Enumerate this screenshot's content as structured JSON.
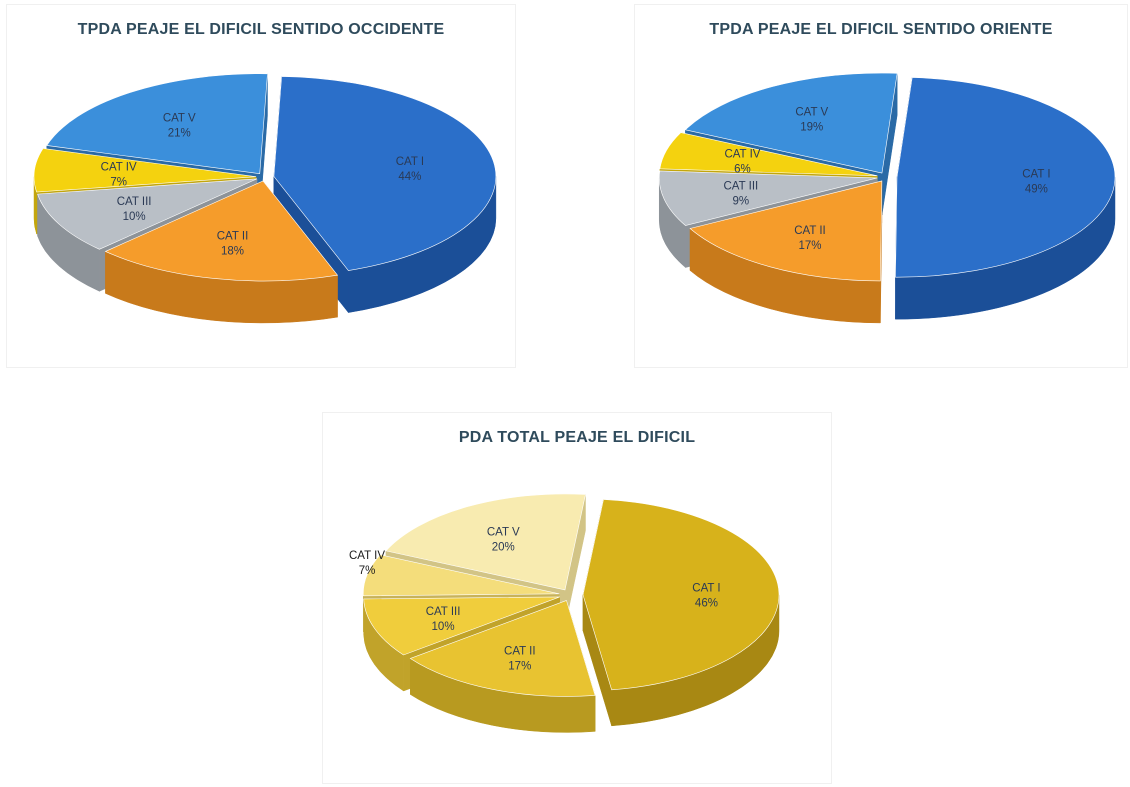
{
  "chart_data": [
    {
      "type": "pie",
      "title": "TPDA PEAJE EL DIFICIL SENTIDO OCCIDENTE",
      "three_d": true,
      "slices": [
        {
          "label": "CAT I",
          "value": 44,
          "value_label": "44%",
          "color": "#2b6fc9",
          "side": "#1b4f98",
          "explode": 1
        },
        {
          "label": "CAT II",
          "value": 18,
          "value_label": "18%",
          "color": "#f59c2b",
          "side": "#c87a1b",
          "explode": 1
        },
        {
          "label": "CAT III",
          "value": 10,
          "value_label": "10%",
          "color": "#b9bfc6",
          "side": "#8d9399",
          "explode": 1
        },
        {
          "label": "CAT IV",
          "value": 7,
          "value_label": "7%",
          "color": "#f4d20f",
          "side": "#c3a60c",
          "explode": 1
        },
        {
          "label": "CAT V",
          "value": 21,
          "value_label": "21%",
          "color": "#3b8fdb",
          "side": "#2a6aa6",
          "explode": 1
        }
      ]
    },
    {
      "type": "pie",
      "title": "TPDA PEAJE EL DIFICIL SENTIDO ORIENTE",
      "three_d": true,
      "slices": [
        {
          "label": "CAT I",
          "value": 49,
          "value_label": "49%",
          "color": "#2b6fc9",
          "side": "#1b4f98",
          "explode": 1
        },
        {
          "label": "CAT II",
          "value": 17,
          "value_label": "17%",
          "color": "#f59c2b",
          "side": "#c87a1b",
          "explode": 1
        },
        {
          "label": "CAT III",
          "value": 9,
          "value_label": "9%",
          "color": "#b9bfc6",
          "side": "#8d9399",
          "explode": 1
        },
        {
          "label": "CAT IV",
          "value": 6,
          "value_label": "6%",
          "color": "#f4d20f",
          "side": "#c3a60c",
          "explode": 1
        },
        {
          "label": "CAT V",
          "value": 19,
          "value_label": "19%",
          "color": "#3b8fdb",
          "side": "#2a6aa6",
          "explode": 1
        }
      ]
    },
    {
      "type": "pie",
      "title": "PDA TOTAL PEAJE  EL DIFICIL",
      "three_d": true,
      "slices": [
        {
          "label": "CAT I",
          "value": 46,
          "value_label": "46%",
          "color": "#d7b21b",
          "side": "#a88813",
          "explode": 1
        },
        {
          "label": "CAT II",
          "value": 17,
          "value_label": "17%",
          "color": "#e8c331",
          "side": "#b89a20",
          "explode": 1
        },
        {
          "label": "CAT III",
          "value": 10,
          "value_label": "10%",
          "color": "#f0cd3c",
          "side": "#c1a32a",
          "explode": 1
        },
        {
          "label": "CAT IV",
          "value": 7,
          "value_label": "7%",
          "color": "#f4dd7b",
          "side": "#c8b35a",
          "explode": 1
        },
        {
          "label": "CAT V",
          "value": 20,
          "value_label": "20%",
          "color": "#f8ebb0",
          "side": "#d2c486",
          "explode": 1
        }
      ]
    }
  ]
}
